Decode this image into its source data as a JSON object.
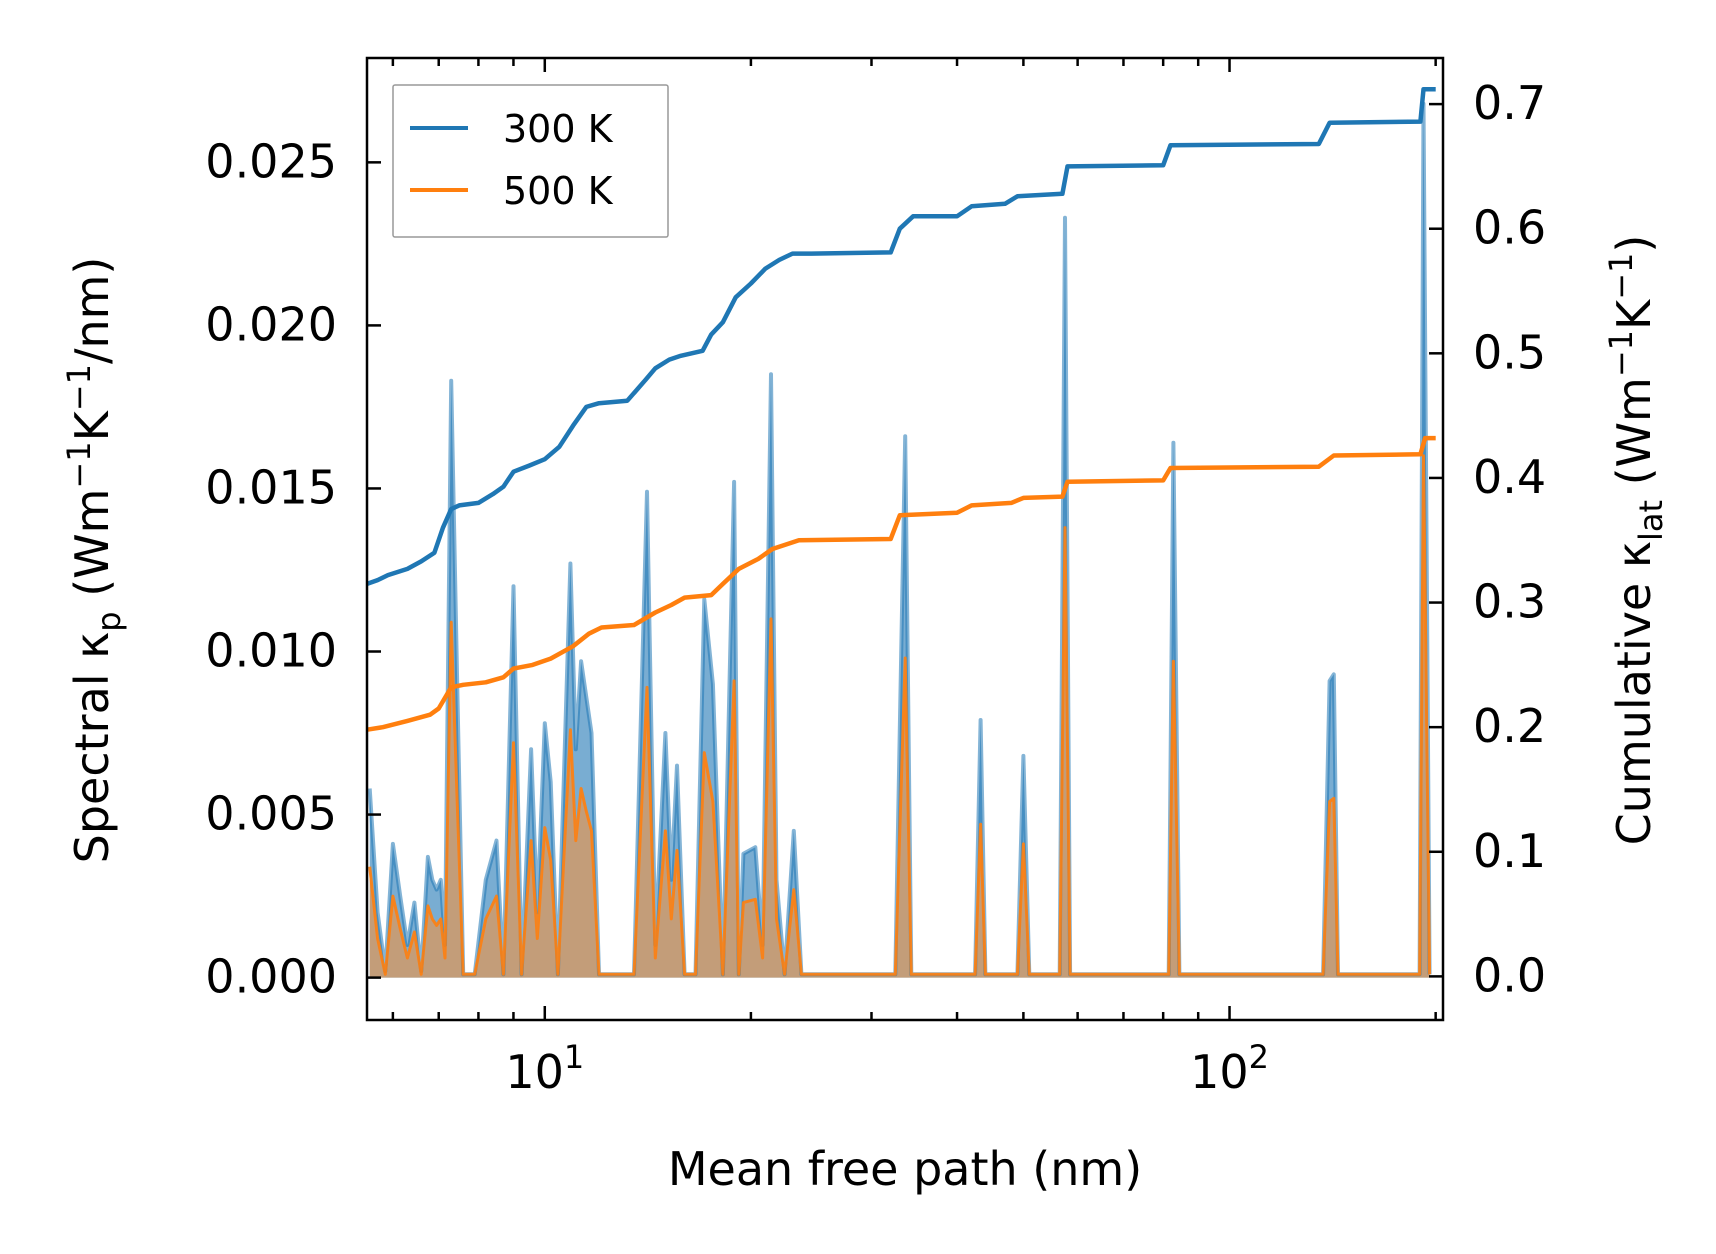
{
  "chart_data": {
    "type": "line",
    "xscale": "log",
    "xlabel": "Mean free path (nm)",
    "xlim": [
      5.5,
      205
    ],
    "x_tick_labels": [
      {
        "base": "10",
        "exp": "1",
        "value": 10
      },
      {
        "base": "10",
        "exp": "2",
        "value": 100
      }
    ],
    "left_axis": {
      "label_main": "Spectral κ",
      "label_sub": "p",
      "label_rest": " (Wm",
      "label_sup1": "−1",
      "label_mid": "K",
      "label_sup2": "−1",
      "label_end": "/nm)",
      "ylim": [
        -0.0013,
        0.0282
      ],
      "ticks": [
        0.0,
        0.005,
        0.01,
        0.015,
        0.02,
        0.025
      ],
      "tick_labels": [
        "0.000",
        "0.005",
        "0.010",
        "0.015",
        "0.020",
        "0.025"
      ]
    },
    "right_axis": {
      "label_main": "Cumulative κ",
      "label_sub": "lat",
      "label_rest": " (Wm",
      "label_sup1": "−1",
      "label_mid": "K",
      "label_sup2": "−1",
      "label_end": ")",
      "ylim": [
        -0.035,
        0.737
      ],
      "ticks": [
        0.0,
        0.1,
        0.2,
        0.3,
        0.4,
        0.5,
        0.6,
        0.7
      ],
      "tick_labels": [
        "0.0",
        "0.1",
        "0.2",
        "0.3",
        "0.4",
        "0.5",
        "0.6",
        "0.7"
      ]
    },
    "legend": {
      "position": "top-left",
      "entries": [
        {
          "label": "300 K",
          "color": "#1f77b4"
        },
        {
          "label": "500 K",
          "color": "#ff7f0e"
        }
      ]
    },
    "cumulative_series": [
      {
        "name": "300 K",
        "color": "#1f77b4",
        "points": [
          [
            5.5,
            0.315
          ],
          [
            5.7,
            0.318
          ],
          [
            5.9,
            0.322
          ],
          [
            6.3,
            0.327
          ],
          [
            6.6,
            0.333
          ],
          [
            6.9,
            0.34
          ],
          [
            7.1,
            0.36
          ],
          [
            7.3,
            0.375
          ],
          [
            7.5,
            0.378
          ],
          [
            8.0,
            0.38
          ],
          [
            8.4,
            0.387
          ],
          [
            8.7,
            0.393
          ],
          [
            9.0,
            0.405
          ],
          [
            9.5,
            0.41
          ],
          [
            10.0,
            0.415
          ],
          [
            10.5,
            0.425
          ],
          [
            11.0,
            0.442
          ],
          [
            11.5,
            0.457
          ],
          [
            12.0,
            0.46
          ],
          [
            13.2,
            0.462
          ],
          [
            14.0,
            0.478
          ],
          [
            14.5,
            0.488
          ],
          [
            15.2,
            0.495
          ],
          [
            15.8,
            0.498
          ],
          [
            17.0,
            0.502
          ],
          [
            17.5,
            0.515
          ],
          [
            18.2,
            0.525
          ],
          [
            19.0,
            0.545
          ],
          [
            20.0,
            0.556
          ],
          [
            21.0,
            0.568
          ],
          [
            22.0,
            0.575
          ],
          [
            23.0,
            0.58
          ],
          [
            24.5,
            0.58
          ],
          [
            32.0,
            0.581
          ],
          [
            33.0,
            0.6
          ],
          [
            34.5,
            0.61
          ],
          [
            40.0,
            0.61
          ],
          [
            42.0,
            0.618
          ],
          [
            47.0,
            0.62
          ],
          [
            49.0,
            0.626
          ],
          [
            57.0,
            0.628
          ],
          [
            58.0,
            0.65
          ],
          [
            80.0,
            0.651
          ],
          [
            82.0,
            0.667
          ],
          [
            135.0,
            0.668
          ],
          [
            140.0,
            0.685
          ],
          [
            190.0,
            0.686
          ],
          [
            192.0,
            0.712
          ],
          [
            200.0,
            0.712
          ]
        ]
      },
      {
        "name": "500 K",
        "color": "#ff7f0e",
        "points": [
          [
            5.5,
            0.198
          ],
          [
            5.8,
            0.2
          ],
          [
            6.3,
            0.205
          ],
          [
            6.8,
            0.21
          ],
          [
            7.0,
            0.215
          ],
          [
            7.3,
            0.232
          ],
          [
            7.6,
            0.234
          ],
          [
            8.2,
            0.236
          ],
          [
            8.7,
            0.24
          ],
          [
            9.0,
            0.247
          ],
          [
            9.6,
            0.25
          ],
          [
            10.2,
            0.255
          ],
          [
            11.0,
            0.265
          ],
          [
            11.6,
            0.275
          ],
          [
            12.1,
            0.28
          ],
          [
            13.5,
            0.282
          ],
          [
            14.5,
            0.292
          ],
          [
            15.3,
            0.298
          ],
          [
            16.0,
            0.304
          ],
          [
            17.5,
            0.306
          ],
          [
            18.2,
            0.315
          ],
          [
            19.2,
            0.327
          ],
          [
            20.5,
            0.335
          ],
          [
            21.5,
            0.343
          ],
          [
            23.5,
            0.35
          ],
          [
            32.0,
            0.351
          ],
          [
            33.0,
            0.37
          ],
          [
            40.0,
            0.372
          ],
          [
            42.0,
            0.378
          ],
          [
            48.0,
            0.38
          ],
          [
            50.0,
            0.384
          ],
          [
            57.0,
            0.385
          ],
          [
            58.0,
            0.397
          ],
          [
            80.0,
            0.398
          ],
          [
            82.0,
            0.408
          ],
          [
            135.0,
            0.409
          ],
          [
            142.0,
            0.418
          ],
          [
            190.0,
            0.419
          ],
          [
            193.0,
            0.432
          ],
          [
            200.0,
            0.432
          ]
        ]
      }
    ],
    "spectral_series": [
      {
        "name": "300 K",
        "color": "#1f77b4",
        "points": [
          [
            5.55,
            0.0058
          ],
          [
            5.7,
            0.002
          ],
          [
            5.85,
            0.0002
          ],
          [
            6.0,
            0.0041
          ],
          [
            6.15,
            0.0025
          ],
          [
            6.3,
            0.001
          ],
          [
            6.45,
            0.0023
          ],
          [
            6.6,
            0.0002
          ],
          [
            6.75,
            0.0037
          ],
          [
            6.85,
            0.003
          ],
          [
            6.95,
            0.0027
          ],
          [
            7.05,
            0.003
          ],
          [
            7.15,
            0.001
          ],
          [
            7.3,
            0.0183
          ],
          [
            7.45,
            0.009
          ],
          [
            7.6,
            0.0001
          ],
          [
            7.9,
            0.0001
          ],
          [
            8.2,
            0.003
          ],
          [
            8.5,
            0.0042
          ],
          [
            8.7,
            0.0001
          ],
          [
            9.0,
            0.012
          ],
          [
            9.25,
            0.0001
          ],
          [
            9.55,
            0.007
          ],
          [
            9.75,
            0.002
          ],
          [
            10.0,
            0.0078
          ],
          [
            10.2,
            0.006
          ],
          [
            10.45,
            0.0001
          ],
          [
            10.9,
            0.0127
          ],
          [
            11.1,
            0.007
          ],
          [
            11.3,
            0.0097
          ],
          [
            11.5,
            0.0086
          ],
          [
            11.7,
            0.0075
          ],
          [
            12.0,
            0.0001
          ],
          [
            13.5,
            0.0001
          ],
          [
            14.1,
            0.0149
          ],
          [
            14.5,
            0.001
          ],
          [
            15.0,
            0.0075
          ],
          [
            15.3,
            0.003
          ],
          [
            15.6,
            0.0065
          ],
          [
            16.0,
            0.0001
          ],
          [
            16.6,
            0.0001
          ],
          [
            17.1,
            0.0116
          ],
          [
            17.6,
            0.009
          ],
          [
            18.2,
            0.0001
          ],
          [
            18.9,
            0.0152
          ],
          [
            19.2,
            0.0001
          ],
          [
            19.5,
            0.0038
          ],
          [
            20.3,
            0.004
          ],
          [
            20.8,
            0.001
          ],
          [
            21.4,
            0.0185
          ],
          [
            21.8,
            0.003
          ],
          [
            22.4,
            0.0001
          ],
          [
            23.1,
            0.0045
          ],
          [
            23.7,
            0.0001
          ],
          [
            32.5,
            0.0001
          ],
          [
            33.6,
            0.0166
          ],
          [
            34.3,
            0.0001
          ],
          [
            42.5,
            0.0001
          ],
          [
            43.3,
            0.0079
          ],
          [
            44.0,
            0.0001
          ],
          [
            49.0,
            0.0001
          ],
          [
            50.0,
            0.0068
          ],
          [
            51.0,
            0.0001
          ],
          [
            56.5,
            0.0001
          ],
          [
            57.5,
            0.0233
          ],
          [
            58.5,
            0.0001
          ],
          [
            81.5,
            0.0001
          ],
          [
            82.8,
            0.0164
          ],
          [
            84.5,
            0.0001
          ],
          [
            137.0,
            0.0001
          ],
          [
            140.0,
            0.0091
          ],
          [
            142.0,
            0.0093
          ],
          [
            144.0,
            0.0001
          ],
          [
            189.5,
            0.0001
          ],
          [
            192.0,
            0.0268
          ],
          [
            196.0,
            0.0001
          ]
        ]
      },
      {
        "name": "500 K",
        "color": "#ff7f0e",
        "points": [
          [
            5.55,
            0.0034
          ],
          [
            5.7,
            0.0012
          ],
          [
            5.85,
            0.0001
          ],
          [
            6.0,
            0.0025
          ],
          [
            6.15,
            0.0015
          ],
          [
            6.3,
            0.0006
          ],
          [
            6.45,
            0.0014
          ],
          [
            6.6,
            0.0001
          ],
          [
            6.75,
            0.0022
          ],
          [
            6.85,
            0.0018
          ],
          [
            6.95,
            0.0016
          ],
          [
            7.05,
            0.0018
          ],
          [
            7.15,
            0.0006
          ],
          [
            7.3,
            0.0109
          ],
          [
            7.45,
            0.0054
          ],
          [
            7.6,
            0.0001
          ],
          [
            7.9,
            0.0001
          ],
          [
            8.2,
            0.0018
          ],
          [
            8.5,
            0.0025
          ],
          [
            8.7,
            0.0001
          ],
          [
            9.0,
            0.0072
          ],
          [
            9.25,
            0.0001
          ],
          [
            9.55,
            0.0042
          ],
          [
            9.75,
            0.0012
          ],
          [
            10.0,
            0.0046
          ],
          [
            10.2,
            0.0036
          ],
          [
            10.45,
            0.0001
          ],
          [
            10.9,
            0.0076
          ],
          [
            11.1,
            0.0042
          ],
          [
            11.3,
            0.0058
          ],
          [
            11.5,
            0.0051
          ],
          [
            11.7,
            0.0045
          ],
          [
            12.0,
            0.0001
          ],
          [
            13.5,
            0.0001
          ],
          [
            14.1,
            0.0089
          ],
          [
            14.5,
            0.0006
          ],
          [
            15.0,
            0.0045
          ],
          [
            15.3,
            0.0018
          ],
          [
            15.6,
            0.0039
          ],
          [
            16.0,
            0.0001
          ],
          [
            16.6,
            0.0001
          ],
          [
            17.1,
            0.0069
          ],
          [
            17.6,
            0.0054
          ],
          [
            18.2,
            0.0001
          ],
          [
            18.9,
            0.0091
          ],
          [
            19.2,
            0.0001
          ],
          [
            19.5,
            0.0023
          ],
          [
            20.3,
            0.0024
          ],
          [
            20.8,
            0.0006
          ],
          [
            21.4,
            0.011
          ],
          [
            21.8,
            0.0018
          ],
          [
            22.4,
            0.0001
          ],
          [
            23.1,
            0.0027
          ],
          [
            23.7,
            0.0001
          ],
          [
            32.5,
            0.0001
          ],
          [
            33.6,
            0.0098
          ],
          [
            34.3,
            0.0001
          ],
          [
            42.5,
            0.0001
          ],
          [
            43.3,
            0.0047
          ],
          [
            44.0,
            0.0001
          ],
          [
            49.0,
            0.0001
          ],
          [
            50.0,
            0.0041
          ],
          [
            51.0,
            0.0001
          ],
          [
            56.5,
            0.0001
          ],
          [
            57.5,
            0.0138
          ],
          [
            58.5,
            0.0001
          ],
          [
            81.5,
            0.0001
          ],
          [
            82.8,
            0.0097
          ],
          [
            84.5,
            0.0001
          ],
          [
            137.0,
            0.0001
          ],
          [
            140.0,
            0.0054
          ],
          [
            142.0,
            0.0055
          ],
          [
            144.0,
            0.0001
          ],
          [
            189.5,
            0.0001
          ],
          [
            192.0,
            0.016
          ],
          [
            196.0,
            0.0001
          ]
        ]
      }
    ]
  }
}
